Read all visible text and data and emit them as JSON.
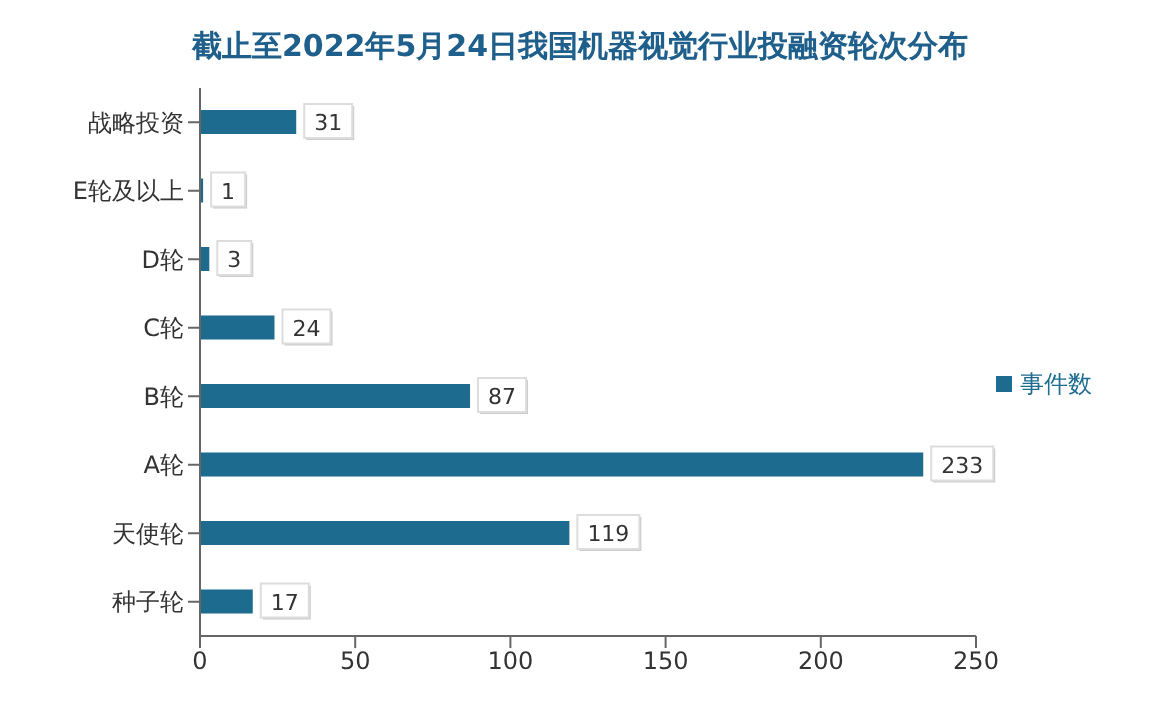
{
  "chart_data": {
    "type": "bar",
    "orientation": "horizontal",
    "title": "截止至2022年5月24日我国机器视觉行业投融资轮次分布",
    "categories": [
      "战略投资",
      "E轮及以上",
      "D轮",
      "C轮",
      "B轮",
      "A轮",
      "天使轮",
      "种子轮"
    ],
    "series": [
      {
        "name": "事件数",
        "color": "#1d6b8e",
        "values": [
          31,
          1,
          3,
          24,
          87,
          233,
          119,
          17
        ]
      }
    ],
    "xlim": [
      0,
      250
    ],
    "xticks": [
      0,
      50,
      100,
      150,
      200,
      250
    ],
    "grid": false,
    "legend": "right",
    "data_labels": true
  }
}
